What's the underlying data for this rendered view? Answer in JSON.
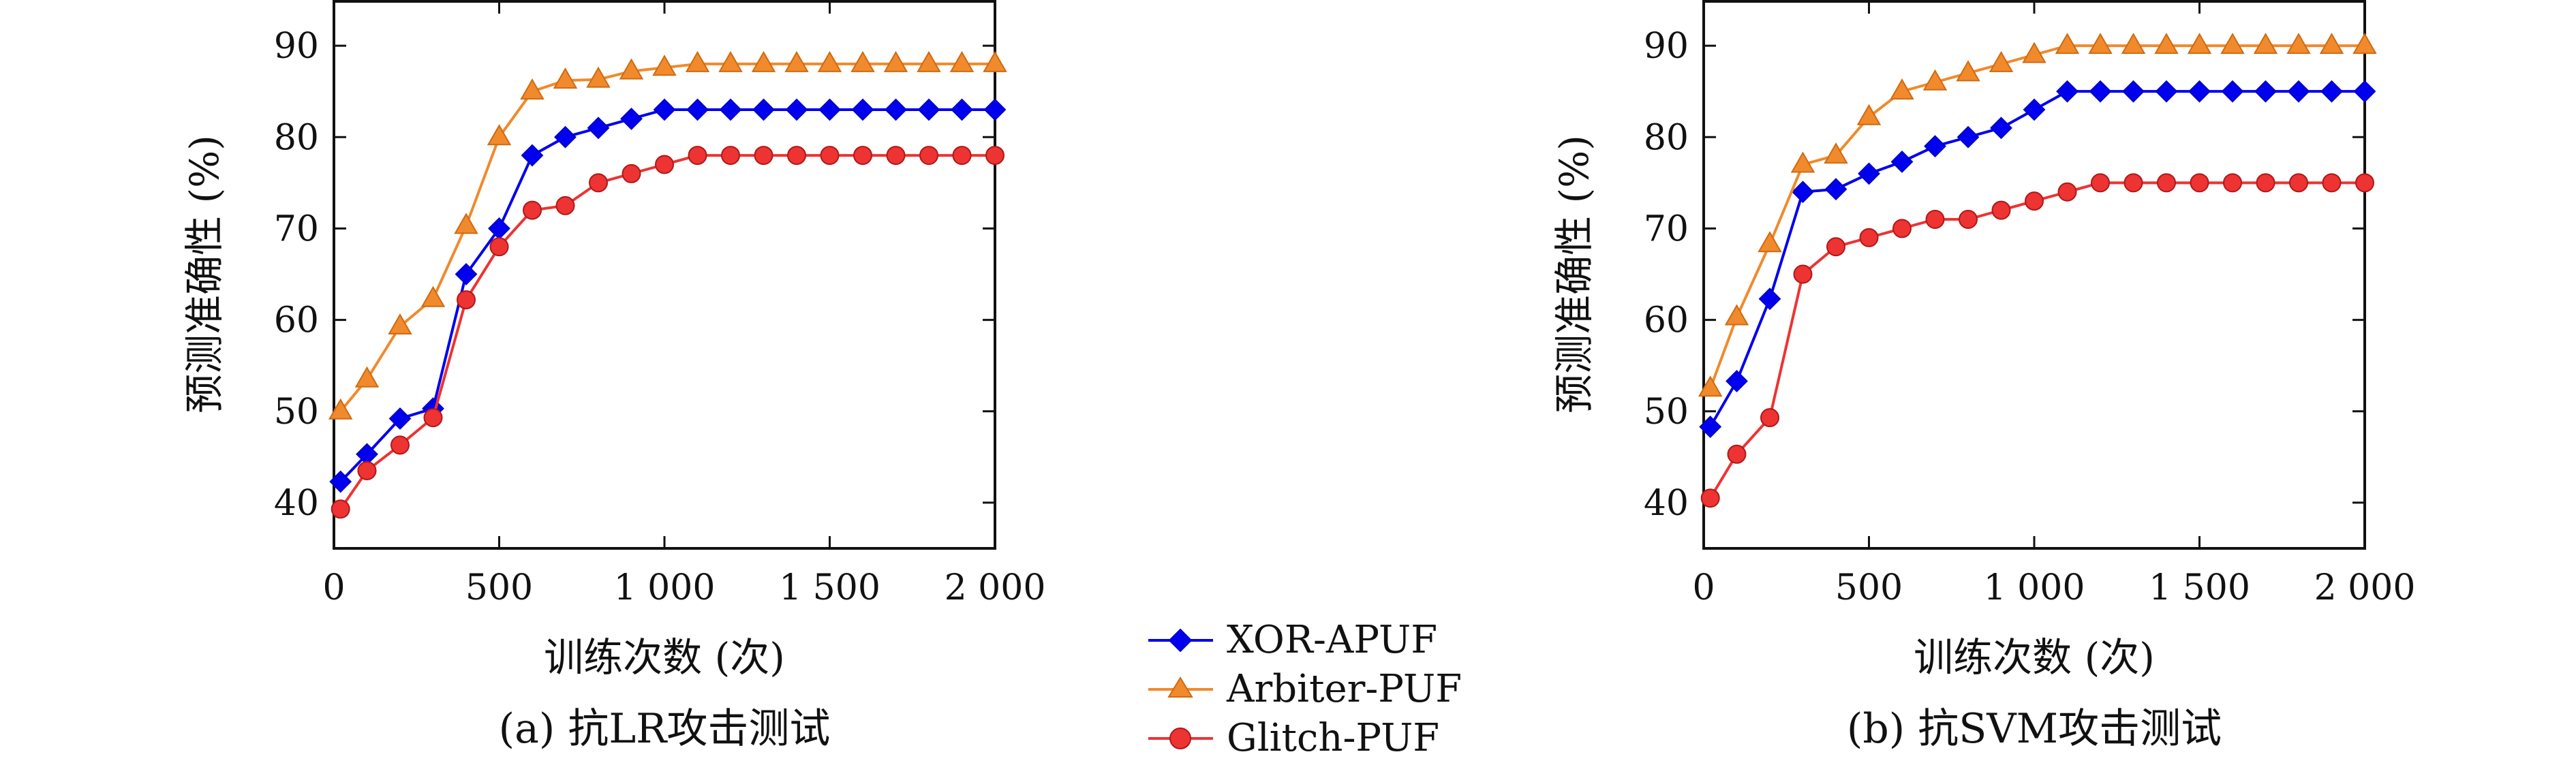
{
  "legend": {
    "placement": "bottom-center",
    "items": [
      {
        "label": "XOR-APUF",
        "color": "#0000ee",
        "marker": "diamond"
      },
      {
        "label": "Arbiter-PUF",
        "color": "#f08a2c",
        "marker": "triangle"
      },
      {
        "label": "Glitch-PUF",
        "color": "#ee3333",
        "marker": "circle"
      }
    ]
  },
  "chart_data": [
    {
      "type": "line",
      "caption": "(a) 抗LR攻击测试",
      "xlabel": "训练次数 (次)",
      "ylabel": "预测准确性 (%)",
      "xlim": [
        0,
        2000
      ],
      "ylim": [
        35,
        95
      ],
      "xticks": [
        0,
        500,
        1000,
        1500,
        2000
      ],
      "xtick_labels": [
        "0",
        "500",
        "1 000",
        "1 500",
        "2 000"
      ],
      "yticks": [
        40,
        50,
        60,
        70,
        80,
        90
      ],
      "ytick_labels": [
        "40",
        "50",
        "60",
        "70",
        "80",
        "90"
      ],
      "grid": false,
      "x": [
        20,
        100,
        200,
        300,
        400,
        500,
        600,
        700,
        800,
        900,
        1000,
        1100,
        1200,
        1300,
        1400,
        1500,
        1600,
        1700,
        1800,
        1900,
        2000
      ],
      "series": [
        {
          "name": "XOR-APUF",
          "color": "#0000ee",
          "marker": "diamond",
          "values": [
            42.3,
            45.3,
            49.2,
            50.3,
            65,
            70,
            78,
            80,
            81,
            82,
            83,
            83,
            83,
            83,
            83,
            83,
            83,
            83,
            83,
            83,
            83
          ]
        },
        {
          "name": "Arbiter-PUF",
          "color": "#f08a2c",
          "marker": "triangle",
          "values": [
            50,
            53.5,
            59.3,
            62.3,
            70.3,
            80,
            85,
            86.2,
            86.3,
            87.2,
            87.6,
            88,
            88,
            88,
            88,
            88,
            88,
            88,
            88,
            88,
            88
          ]
        },
        {
          "name": "Glitch-PUF",
          "color": "#ee3333",
          "marker": "circle",
          "values": [
            39.3,
            43.5,
            46.3,
            49.3,
            62.2,
            68,
            72,
            72.5,
            75,
            76,
            77,
            78,
            78,
            78,
            78,
            78,
            78,
            78,
            78,
            78,
            78
          ]
        }
      ]
    },
    {
      "type": "line",
      "caption": "(b) 抗SVM攻击测试",
      "xlabel": "训练次数 (次)",
      "ylabel": "预测准确性 (%)",
      "xlim": [
        0,
        2000
      ],
      "ylim": [
        35,
        95
      ],
      "xticks": [
        0,
        500,
        1000,
        1500,
        2000
      ],
      "xtick_labels": [
        "0",
        "500",
        "1 000",
        "1 500",
        "2 000"
      ],
      "yticks": [
        40,
        50,
        60,
        70,
        80,
        90
      ],
      "ytick_labels": [
        "40",
        "50",
        "60",
        "70",
        "80",
        "90"
      ],
      "grid": false,
      "x": [
        20,
        100,
        200,
        300,
        400,
        500,
        600,
        700,
        800,
        900,
        1000,
        1100,
        1200,
        1300,
        1400,
        1500,
        1600,
        1700,
        1800,
        1900,
        2000
      ],
      "series": [
        {
          "name": "XOR-APUF",
          "color": "#0000ee",
          "marker": "diamond",
          "values": [
            48.3,
            53.3,
            62.3,
            74,
            74.3,
            76,
            77.3,
            79,
            80,
            81,
            83,
            85,
            85,
            85,
            85,
            85,
            85,
            85,
            85,
            85,
            85
          ]
        },
        {
          "name": "Arbiter-PUF",
          "color": "#f08a2c",
          "marker": "triangle",
          "values": [
            52.5,
            60.3,
            68.3,
            77,
            78,
            82.2,
            85,
            86,
            87,
            88,
            89,
            90,
            90,
            90,
            90,
            90,
            90,
            90,
            90,
            90,
            90
          ]
        },
        {
          "name": "Glitch-PUF",
          "color": "#ee3333",
          "marker": "circle",
          "values": [
            40.5,
            45.3,
            49.3,
            65,
            68,
            69,
            70,
            71,
            71,
            72,
            73,
            74,
            75,
            75,
            75,
            75,
            75,
            75,
            75,
            75,
            75
          ]
        }
      ]
    }
  ]
}
